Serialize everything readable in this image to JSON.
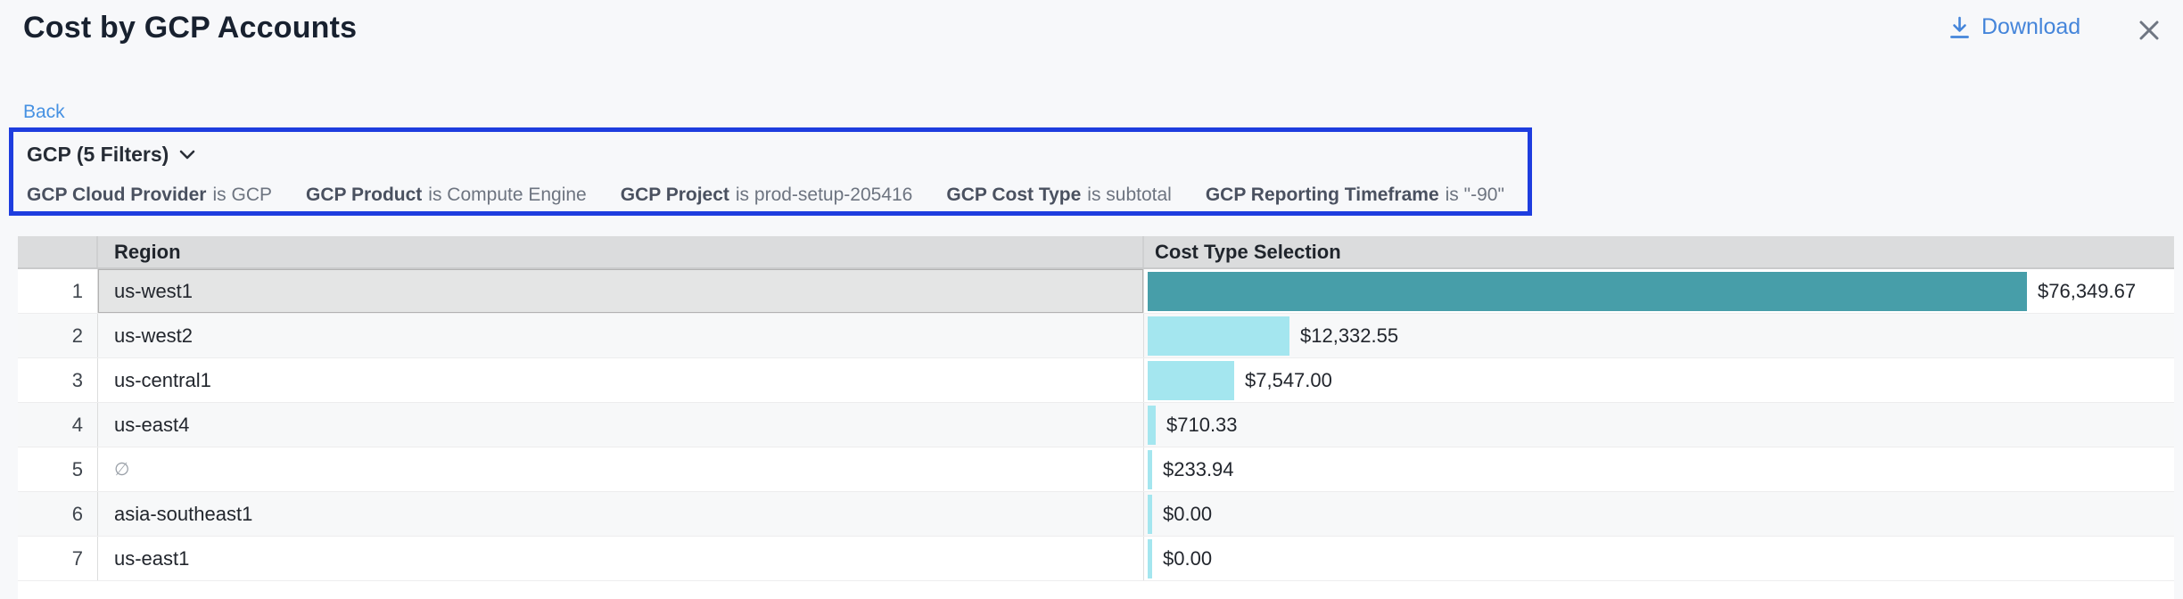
{
  "header": {
    "title": "Cost by GCP Accounts",
    "download_label": "Download"
  },
  "nav": {
    "back_label": "Back"
  },
  "filter_panel": {
    "summary_label": "GCP (5 Filters)",
    "filters": [
      {
        "field": "GCP Cloud Provider",
        "condition": "is GCP"
      },
      {
        "field": "GCP Product",
        "condition": "is Compute Engine"
      },
      {
        "field": "GCP Project",
        "condition": "is prod-setup-205416"
      },
      {
        "field": "GCP Cost Type",
        "condition": "is subtotal"
      },
      {
        "field": "GCP Reporting Timeframe",
        "condition": "is \"-90\""
      }
    ]
  },
  "table": {
    "columns": {
      "region": "Region",
      "cost": "Cost Type Selection"
    },
    "rows": [
      {
        "index": "1",
        "region": "us-west1",
        "empty": false,
        "cost_label": "$76,349.67",
        "cost_value": 76349.67,
        "selected": true
      },
      {
        "index": "2",
        "region": "us-west2",
        "empty": false,
        "cost_label": "$12,332.55",
        "cost_value": 12332.55,
        "selected": false
      },
      {
        "index": "3",
        "region": "us-central1",
        "empty": false,
        "cost_label": "$7,547.00",
        "cost_value": 7547.0,
        "selected": false
      },
      {
        "index": "4",
        "region": "us-east4",
        "empty": false,
        "cost_label": "$710.33",
        "cost_value": 710.33,
        "selected": false
      },
      {
        "index": "5",
        "region": "∅",
        "empty": true,
        "cost_label": "$233.94",
        "cost_value": 233.94,
        "selected": false
      },
      {
        "index": "6",
        "region": "asia-southeast1",
        "empty": false,
        "cost_label": "$0.00",
        "cost_value": 0.0,
        "selected": false
      },
      {
        "index": "7",
        "region": "us-east1",
        "empty": false,
        "cost_label": "$0.00",
        "cost_value": 0.0,
        "selected": false
      }
    ]
  },
  "icons": {
    "download": "download-arrow-icon",
    "close": "close-x-icon",
    "chevron": "chevron-down-icon"
  },
  "colors": {
    "bar_primary": "#479ea9",
    "bar_secondary": "#a4e6ef",
    "focus_border": "#1e3ddf",
    "link_blue": "#4585da",
    "header_bg": "#dbdcdd"
  },
  "chart_data": {
    "type": "bar",
    "orientation": "horizontal",
    "categories": [
      "us-west1",
      "us-west2",
      "us-central1",
      "us-east4",
      "∅",
      "asia-southeast1",
      "us-east1"
    ],
    "values": [
      76349.67,
      12332.55,
      7547.0,
      710.33,
      233.94,
      0.0,
      0.0
    ],
    "value_labels": [
      "$76,349.67",
      "$12,332.55",
      "$7,547.00",
      "$710.33",
      "$233.94",
      "$0.00",
      "$0.00"
    ],
    "title": "Cost by GCP Accounts",
    "xlabel": "Cost Type Selection",
    "ylabel": "Region",
    "xlim": [
      0,
      76349.67
    ]
  }
}
